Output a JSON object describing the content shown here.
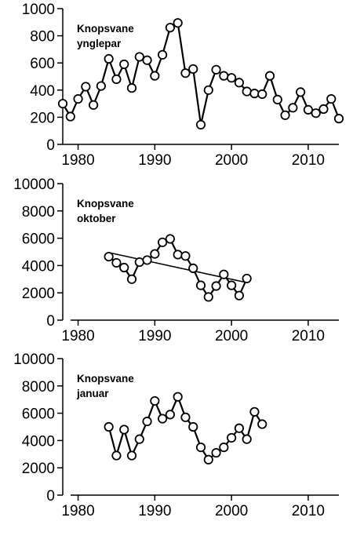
{
  "chart_data": [
    {
      "type": "line",
      "title_lines": [
        "Knopsvane",
        "ynglepar"
      ],
      "xlabel": "",
      "ylabel": "",
      "xlim": [
        1978,
        2014
      ],
      "ylim": [
        0,
        1000
      ],
      "xticks": [
        1980,
        1990,
        2000,
        2010
      ],
      "yticks": [
        0,
        200,
        400,
        600,
        800,
        1000
      ],
      "grid": false,
      "legend": "none",
      "series": [
        {
          "x": [
            1978,
            1979,
            1980,
            1981,
            1982,
            1983,
            1984,
            1985,
            1986,
            1987,
            1988,
            1989,
            1990,
            1991,
            1992,
            1993,
            1994,
            1995,
            1996,
            1997,
            1998,
            1999,
            2000,
            2001,
            2002,
            2003,
            2004,
            2005,
            2006,
            2007,
            2008,
            2009,
            2010,
            2011,
            2012,
            2013,
            2014
          ],
          "y": [
            300,
            205,
            335,
            425,
            290,
            430,
            630,
            480,
            590,
            415,
            645,
            620,
            505,
            660,
            860,
            895,
            525,
            555,
            145,
            400,
            550,
            505,
            490,
            455,
            390,
            375,
            370,
            505,
            330,
            215,
            270,
            385,
            255,
            230,
            260,
            335,
            190
          ]
        }
      ]
    },
    {
      "type": "line",
      "title_lines": [
        "Knopsvane",
        "oktober"
      ],
      "xlabel": "",
      "ylabel": "",
      "xlim": [
        1978,
        2014
      ],
      "ylim": [
        0,
        10000
      ],
      "xticks": [
        1980,
        1990,
        2000,
        2010
      ],
      "yticks": [
        0,
        2000,
        4000,
        6000,
        8000,
        10000
      ],
      "grid": false,
      "legend": "none",
      "series": [
        {
          "x": [
            1984,
            1985,
            1986,
            1987,
            1988,
            1989,
            1990,
            1991,
            1992,
            1993,
            1994,
            1995,
            1996,
            1997,
            1998,
            1999,
            2000,
            2001,
            2002
          ],
          "y": [
            4650,
            4200,
            3850,
            3000,
            4250,
            4400,
            4850,
            5700,
            5950,
            4800,
            4700,
            3800,
            2550,
            1700,
            2500,
            3350,
            2550,
            1800,
            3050
          ]
        }
      ],
      "trendline": {
        "x": [
          1984,
          2002
        ],
        "y": [
          4950,
          2750
        ]
      }
    },
    {
      "type": "line",
      "title_lines": [
        "Knopsvane",
        "januar"
      ],
      "xlabel": "",
      "ylabel": "",
      "xlim": [
        1978,
        2014
      ],
      "ylim": [
        0,
        10000
      ],
      "xticks": [
        1980,
        1990,
        2000,
        2010
      ],
      "yticks": [
        0,
        2000,
        4000,
        6000,
        8000,
        10000
      ],
      "grid": false,
      "legend": "none",
      "series": [
        {
          "x": [
            1984,
            1985,
            1986,
            1987,
            1988,
            1989,
            1990,
            1991,
            1992,
            1993,
            1994,
            1995,
            1996,
            1997,
            1998,
            1999,
            2000,
            2001,
            2002,
            2003,
            2004
          ],
          "y": [
            5000,
            2900,
            4800,
            2900,
            4100,
            5400,
            6900,
            5600,
            5900,
            7200,
            5700,
            5000,
            3500,
            2600,
            3100,
            3500,
            4200,
            4900,
            4100,
            6100,
            5200
          ]
        }
      ]
    }
  ]
}
